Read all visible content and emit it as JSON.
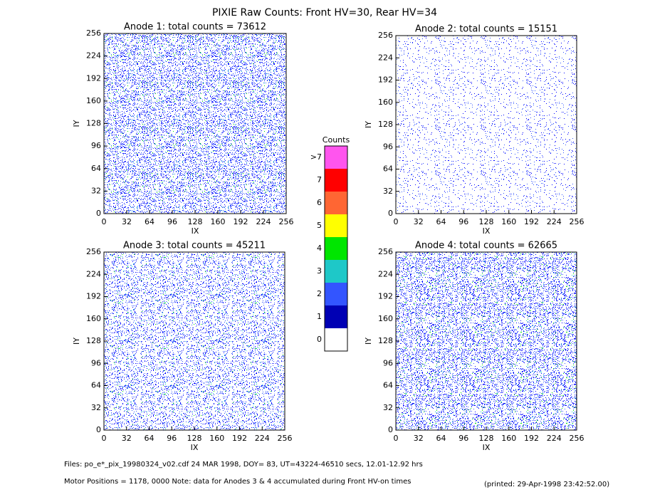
{
  "title": "PIXIE Raw Counts:  Front HV=30, Rear HV=34",
  "chart_data": [
    {
      "type": "heatmap",
      "title": "Anode 1: total counts = 73612",
      "xlabel": "IX",
      "ylabel": "IY",
      "xlim": [
        0,
        256
      ],
      "ylim": [
        0,
        256
      ],
      "xticks": [
        0,
        32,
        64,
        96,
        128,
        160,
        192,
        224,
        256
      ],
      "yticks": [
        0,
        32,
        64,
        96,
        128,
        160,
        192,
        224,
        256
      ]
    },
    {
      "type": "heatmap",
      "title": "Anode 2: total counts = 15151",
      "xlabel": "IX",
      "ylabel": "IY",
      "xlim": [
        0,
        256
      ],
      "ylim": [
        0,
        256
      ],
      "xticks": [
        0,
        32,
        64,
        96,
        128,
        160,
        192,
        224,
        256
      ],
      "yticks": [
        0,
        32,
        64,
        96,
        128,
        160,
        192,
        224,
        256
      ]
    },
    {
      "type": "heatmap",
      "title": "Anode 3: total counts = 45211",
      "xlabel": "IX",
      "ylabel": "IY",
      "xlim": [
        0,
        256
      ],
      "ylim": [
        0,
        256
      ],
      "xticks": [
        0,
        32,
        64,
        96,
        128,
        160,
        192,
        224,
        256
      ],
      "yticks": [
        0,
        32,
        64,
        96,
        128,
        160,
        192,
        224,
        256
      ]
    },
    {
      "type": "heatmap",
      "title": "Anode 4: total counts = 62665",
      "xlabel": "IX",
      "ylabel": "IY",
      "xlim": [
        0,
        256
      ],
      "ylim": [
        0,
        256
      ],
      "xticks": [
        0,
        32,
        64,
        96,
        128,
        160,
        192,
        224,
        256
      ],
      "yticks": [
        0,
        32,
        64,
        96,
        128,
        160,
        192,
        224,
        256
      ]
    }
  ],
  "colorbar": {
    "title": "Counts",
    "labels": [
      "0",
      "1",
      "2",
      "3",
      "4",
      "5",
      "6",
      "7",
      ">7"
    ],
    "colors": [
      "#ffffff",
      "#0000b4",
      "#3355ff",
      "#1ec8c8",
      "#00e600",
      "#ffff00",
      "#ff6633",
      "#ff0000",
      "#ff55ee"
    ]
  },
  "footer": {
    "files": "Files: po_e*_pix_19980324_v02.cdf    24 MAR 1998, DOY= 83, UT=43224-46510 secs, 12.01-12.92 hrs",
    "note": "Motor Positions = 1178, 0000    Note: data for Anodes 3 & 4 accumulated during Front HV-on times",
    "printed": "(printed: 29-Apr-1998 23:42:52.00)"
  }
}
